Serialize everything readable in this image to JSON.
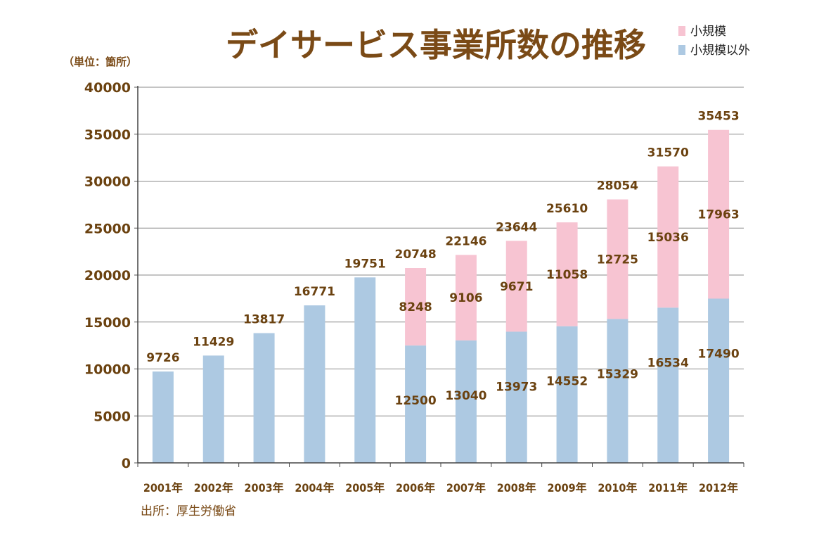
{
  "chart_data": {
    "type": "bar",
    "stacked": true,
    "title": "デイサービス事業所数の推移",
    "unit_label": "（単位：箇所）",
    "source": "出所：厚生労働省",
    "categories": [
      "2001年",
      "2002年",
      "2003年",
      "2004年",
      "2005年",
      "2006年",
      "2007年",
      "2008年",
      "2009年",
      "2010年",
      "2011年",
      "2012年"
    ],
    "series": [
      {
        "name": "小規模以外",
        "color": "#adc9e2",
        "values": [
          9726,
          11429,
          13817,
          16771,
          19751,
          12500,
          13040,
          13973,
          14552,
          15329,
          16534,
          17490
        ]
      },
      {
        "name": "小規模",
        "color": "#f7c4d2",
        "values": [
          null,
          null,
          null,
          null,
          null,
          8248,
          9106,
          9671,
          11058,
          12725,
          15036,
          17963
        ]
      }
    ],
    "totals": [
      null,
      null,
      null,
      null,
      null,
      20748,
      22146,
      23644,
      25610,
      28054,
      31570,
      35453
    ],
    "ylim": [
      0,
      40000
    ],
    "yticks": [
      0,
      5000,
      10000,
      15000,
      20000,
      25000,
      30000,
      35000,
      40000
    ],
    "grid": true,
    "legend": [
      {
        "label": "小規模",
        "color": "#f7c4d2"
      },
      {
        "label": "小規模以外",
        "color": "#adc9e2"
      }
    ],
    "legend_position": "top-right"
  }
}
